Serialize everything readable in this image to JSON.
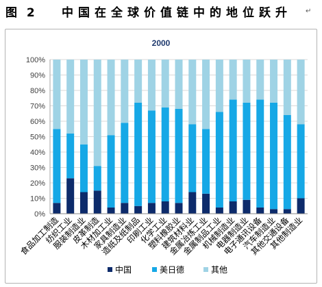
{
  "header": {
    "figure_label": "图 2",
    "caption": "中国在全球价值链中的地位跃升",
    "paragraph_mark": "↵"
  },
  "chart_data": {
    "type": "bar",
    "stacked": true,
    "percent": true,
    "title": "2000",
    "categories": [
      "食品加工制造",
      "纺织工业",
      "服装制造业",
      "皮革制造",
      "木材加工业",
      "家具制造业",
      "造纸及纸制品",
      "印刷工业",
      "化学工业",
      "塑料橡胶业",
      "建筑材料业",
      "金属冶炼工业",
      "金属制品工业",
      "机械制造业",
      "电器制造业",
      "电子通讯设备",
      "汽车制造业",
      "其他交通设备",
      "其他制造业"
    ],
    "series": [
      {
        "name": "中国",
        "color": "#0d2b6b",
        "values": [
          7,
          23,
          14,
          15,
          4,
          7,
          5,
          7,
          8,
          7,
          14,
          13,
          4,
          8,
          9,
          4,
          3,
          3,
          10
        ]
      },
      {
        "name": "美日德",
        "color": "#16a8e6",
        "values": [
          48,
          29,
          31,
          16,
          47,
          52,
          67,
          60,
          61,
          61,
          44,
          42,
          62,
          66,
          63,
          70,
          69,
          61,
          48
        ]
      },
      {
        "name": "其他",
        "color": "#9fd3e5",
        "values": [
          45,
          48,
          55,
          69,
          49,
          41,
          28,
          33,
          31,
          32,
          42,
          45,
          34,
          26,
          28,
          26,
          28,
          36,
          42
        ]
      }
    ],
    "ylim": [
      0,
      100
    ],
    "yticks": [
      0,
      10,
      20,
      30,
      40,
      50,
      60,
      70,
      80,
      90,
      100
    ],
    "ytick_labels": [
      "0%",
      "10%",
      "20%",
      "30%",
      "40%",
      "50%",
      "60%",
      "70%",
      "80%",
      "90%",
      "100%"
    ],
    "grid": true,
    "legend": "bottom"
  }
}
